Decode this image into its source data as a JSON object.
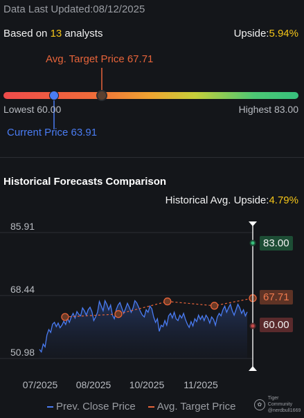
{
  "header": {
    "updated_label": "Data Last Updated:",
    "updated_date": "08/12/2025",
    "based_on_prefix": "Based on ",
    "analyst_count": "13",
    "based_on_suffix": " analysts",
    "upside_label": "Upside:",
    "upside_value": "5.94%"
  },
  "range": {
    "avg_target_label": "Avg. Target Price 67.71",
    "lowest_label": "Lowest 60.00",
    "highest_label": "Highest 83.00",
    "current_label": "Current Price 63.91",
    "lowest": 60.0,
    "highest": 83.0,
    "current": 63.91,
    "avg_target": 67.71
  },
  "history": {
    "title": "Historical Forecasts Comparison",
    "upside_label": "Historical Avg. Upside:",
    "upside_value": "4.79%",
    "tag_high": "83.00",
    "tag_avg": "67.71",
    "tag_low": "60.00"
  },
  "legend": {
    "prev_close": "Prev. Close Price",
    "avg_target": "Avg. Target Price"
  },
  "watermark": {
    "brand": "Tiger Community",
    "user": "@nerdbull1669"
  },
  "colors": {
    "background": "#14161a",
    "accent_yellow": "#f5c518",
    "price_blue": "#4a7cf3",
    "target_orange": "#e8643a",
    "high_green": "#37c07d",
    "low_red": "#c44a4a"
  },
  "chart_data": {
    "type": "line",
    "ylim": [
      50.98,
      85.91
    ],
    "y_ticks": [
      "85.91",
      "68.44",
      "50.98"
    ],
    "x_ticks": [
      "07/2025",
      "08/2025",
      "10/2025",
      "11/2025"
    ],
    "series": [
      {
        "name": "Prev. Close Price",
        "values": [
          53.5,
          52.8,
          55.0,
          54.2,
          57.5,
          59.0,
          58.2,
          60.5,
          61.0,
          59.8,
          60.8,
          59.5,
          60.2,
          61.3,
          60.4,
          62.1,
          61.0,
          62.5,
          63.5,
          62.2,
          64.0,
          63.2,
          62.8,
          65.0,
          64.2,
          63.0,
          64.5,
          65.2,
          64.0,
          61.5,
          62.5,
          63.8,
          66.8,
          65.5,
          64.2,
          67.0,
          66.0,
          64.5,
          65.8,
          63.0,
          62.0,
          64.5,
          65.8,
          66.5,
          65.0,
          63.5,
          64.8,
          66.3,
          65.2,
          63.8,
          65.0,
          67.0,
          66.4,
          65.2,
          64.0,
          63.0,
          62.5,
          64.5,
          63.8,
          65.5,
          64.8,
          62.5,
          61.0,
          62.0,
          58.5,
          60.2,
          59.8,
          61.5,
          60.2,
          62.8,
          63.5,
          62.2,
          63.8,
          62.0,
          61.5,
          63.0,
          62.2,
          63.5,
          61.8,
          60.5,
          59.6,
          61.2,
          60.0,
          62.0,
          61.2,
          63.0,
          61.8,
          62.8,
          61.5,
          63.0,
          62.2,
          60.8,
          62.5,
          61.8,
          60.2,
          62.5,
          63.5,
          62.8,
          64.5,
          65.5,
          63.8,
          65.0,
          66.0,
          64.2,
          63.0,
          64.5,
          66.0,
          65.0,
          63.5,
          64.5,
          62.8,
          63.9
        ]
      },
      {
        "name": "Avg. Target Price",
        "points": [
          [
            0.12,
            62.5
          ],
          [
            0.37,
            63.3
          ],
          [
            0.6,
            66.8
          ],
          [
            0.82,
            65.6
          ],
          [
            1.0,
            67.71
          ]
        ]
      }
    ],
    "forecast": {
      "high": 83.0,
      "avg": 67.71,
      "low": 60.0
    }
  }
}
